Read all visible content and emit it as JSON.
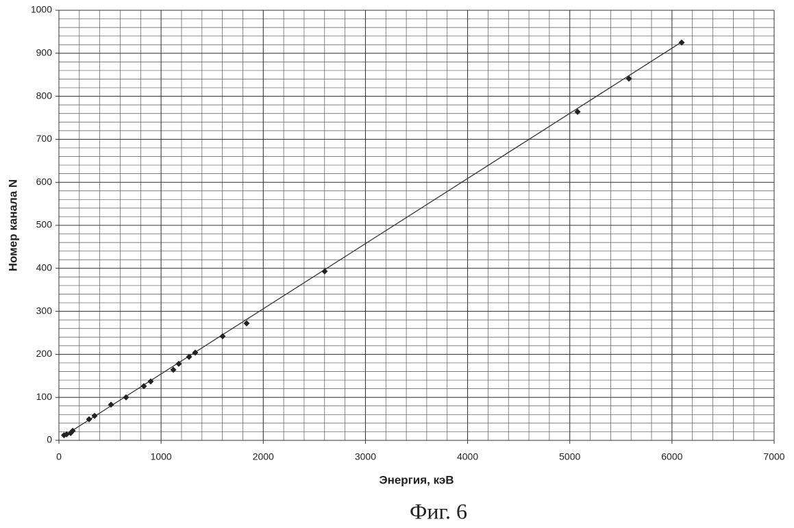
{
  "chart_data": {
    "type": "scatter",
    "xlabel": "Энергия, кэВ",
    "ylabel": "Номер канала N",
    "caption": "Фиг. 6",
    "x": [
      50,
      75,
      115,
      135,
      295,
      349,
      510,
      657,
      831,
      898,
      1120,
      1173,
      1274,
      1334,
      1602,
      1837,
      2601,
      5076,
      5579,
      6095
    ],
    "series": [
      {
        "name": "Номер канала N",
        "color": "#222222",
        "values": [
          12,
          14,
          17,
          22,
          49,
          57,
          83,
          100,
          126,
          137,
          164,
          178,
          194,
          204,
          242,
          272,
          393,
          764,
          841,
          925
        ]
      }
    ],
    "trendline": {
      "x": [
        60,
        6100
      ],
      "y": [
        12,
        927
      ],
      "color": "#333333"
    },
    "xlim": [
      0,
      7000
    ],
    "xticks": [
      0,
      1000,
      2000,
      3000,
      4000,
      5000,
      6000,
      7000
    ],
    "ylim": [
      0,
      1000
    ],
    "yticks": [
      0,
      100,
      200,
      300,
      400,
      500,
      600,
      700,
      800,
      900,
      1000
    ],
    "grid": true,
    "xgrid_step": 200,
    "ygrid_step": 20
  }
}
